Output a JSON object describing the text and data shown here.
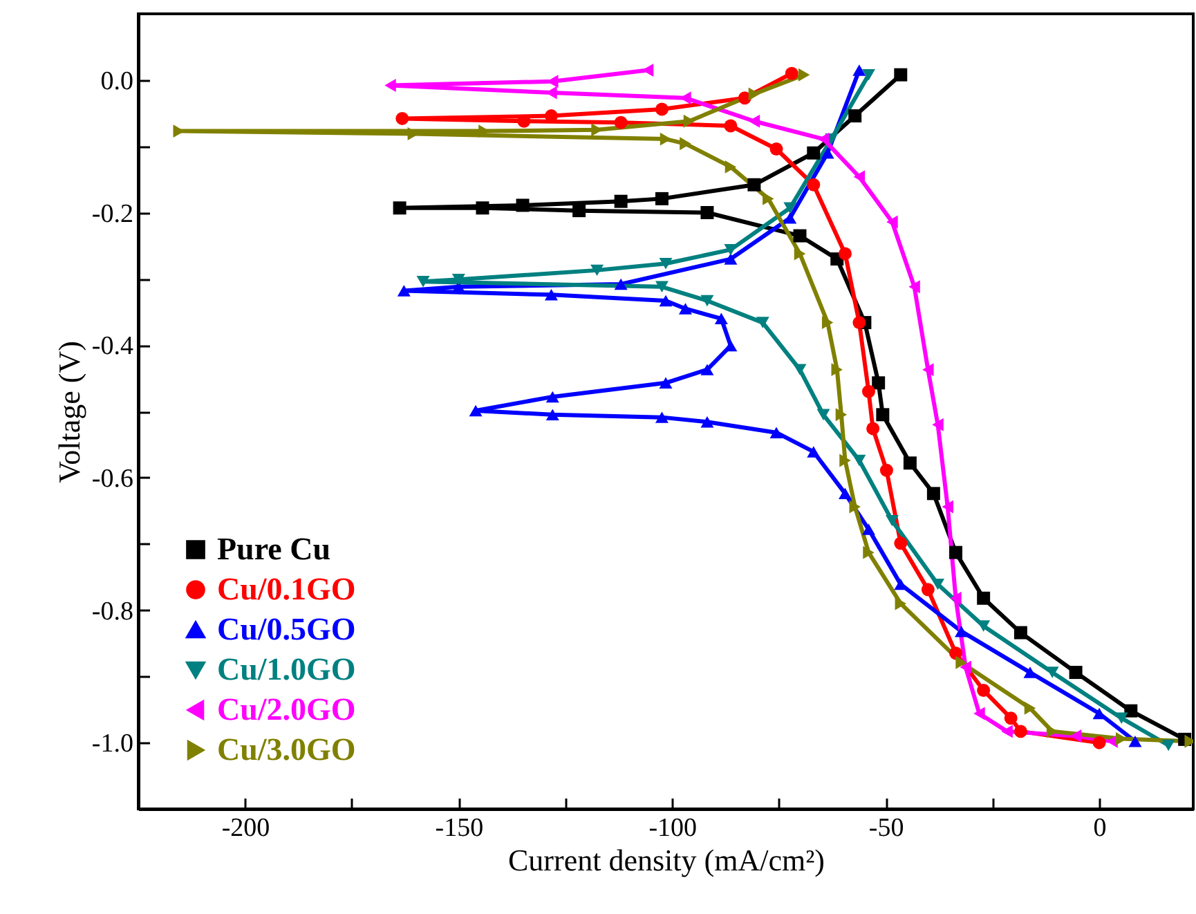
{
  "chart_data": {
    "type": "line",
    "xlabel": "Current density (mA/cm²)",
    "ylabel": "Voltage (V)",
    "xlim": [
      -225,
      22
    ],
    "ylim": [
      -1.1,
      0.1
    ],
    "xticks": [
      -200,
      {
        "value": -175,
        "label": null
      },
      -150,
      {
        "value": -125,
        "label": null
      },
      -100,
      {
        "value": -75,
        "label": null
      },
      -50,
      {
        "value": -25,
        "label": null
      },
      0
    ],
    "yticks": [
      {
        "value": 0,
        "label": "0.0"
      },
      {
        "value": -0.1,
        "label": null
      },
      -0.2,
      {
        "value": -0.3,
        "label": null
      },
      -0.4,
      {
        "value": -0.5,
        "label": null
      },
      -0.6,
      {
        "value": -0.7,
        "label": null
      },
      -0.8,
      {
        "value": -0.9,
        "label": null
      },
      {
        "value": -1,
        "label": "-1.0"
      }
    ],
    "grid": false,
    "legend": "bottom left",
    "line_style": "solid",
    "series": [
      {
        "name": "Pure Cu",
        "color": "#000000",
        "marker": "square",
        "x": [
          20,
          7.4,
          -5.5,
          -18.4,
          -27.1,
          -33.6,
          -38.8,
          -44.3,
          -50.7,
          -51.7,
          -54.9,
          -61.4,
          -70.1,
          -91.8,
          -121.8,
          -144.4,
          -163.8,
          -135,
          -112,
          -102.4,
          -80.8,
          -66.9,
          -57.2,
          -46.5
        ],
        "values": [
          -0.995,
          -0.952,
          -0.894,
          -0.834,
          -0.782,
          -0.713,
          -0.624,
          -0.578,
          -0.505,
          -0.457,
          -0.366,
          -0.27,
          -0.235,
          -0.2,
          -0.197,
          -0.193,
          -0.193,
          -0.189,
          -0.183,
          -0.179,
          -0.158,
          -0.11,
          -0.054,
          0.008
        ]
      },
      {
        "name": "Cu/0.1GO",
        "color": "#ff0000",
        "marker": "circle",
        "x": [
          0,
          -18.4,
          -20.7,
          -27.1,
          -33.6,
          -40.1,
          -46.5,
          -49.8,
          -53,
          -54,
          -56.2,
          -59.5,
          -66.9,
          -75.6,
          -86.3,
          -112,
          -134.7,
          -163.2,
          -128.3,
          -102.4,
          -83,
          -72
        ],
        "values": [
          -1,
          -0.983,
          -0.963,
          -0.921,
          -0.865,
          -0.769,
          -0.699,
          -0.589,
          -0.526,
          -0.47,
          -0.366,
          -0.262,
          -0.158,
          -0.104,
          -0.069,
          -0.064,
          -0.062,
          -0.058,
          -0.054,
          -0.044,
          -0.027,
          0.01
        ]
      },
      {
        "name": "Cu/0.5GO",
        "color": "#0000ff",
        "marker": "triangle-up",
        "x": [
          8.4,
          0,
          -16.2,
          -32.3,
          -46.5,
          -54,
          -59.5,
          -66.9,
          -75.6,
          -91.8,
          -102.4,
          -128,
          -146,
          -128,
          -101.5,
          -91.8,
          -86.3,
          -88.5,
          -96.9,
          -101.5,
          -128.3,
          -162.8,
          -150,
          -112,
          -86.3,
          -72.4,
          -63.6,
          -56.2
        ],
        "values": [
          -0.998,
          -0.956,
          -0.894,
          -0.832,
          -0.761,
          -0.678,
          -0.624,
          -0.561,
          -0.532,
          -0.516,
          -0.509,
          -0.505,
          -0.499,
          -0.478,
          -0.457,
          -0.437,
          -0.401,
          -0.36,
          -0.345,
          -0.333,
          -0.324,
          -0.318,
          -0.312,
          -0.308,
          -0.27,
          -0.208,
          -0.11,
          0.015
        ]
      },
      {
        "name": "Cu/1.0GO",
        "color": "#008080",
        "marker": "triangle-down",
        "x": [
          16.2,
          5.2,
          -11,
          -27.1,
          -37.8,
          -48.5,
          -56.2,
          -64.6,
          -70.1,
          -78.8,
          -91.8,
          -102.4,
          -158.3,
          -150,
          -117.6,
          -101.5,
          -86.3,
          -72.4,
          -62.7,
          -54
        ],
        "values": [
          -1.004,
          -0.963,
          -0.894,
          -0.824,
          -0.761,
          -0.665,
          -0.574,
          -0.505,
          -0.437,
          -0.366,
          -0.333,
          -0.312,
          -0.304,
          -0.301,
          -0.287,
          -0.277,
          -0.256,
          -0.193,
          -0.089,
          0.008
        ]
      },
      {
        "name": "Cu/2.0GO",
        "color": "#ff00ff",
        "marker": "triangle-left",
        "x": [
          3,
          -5.5,
          -21.6,
          -28.1,
          -31.3,
          -33.6,
          -35.5,
          -37.8,
          -40.1,
          -43.3,
          -48.5,
          -56.2,
          -64.6,
          -80.8,
          -96.9,
          -128.3,
          -166,
          -128,
          -105.7
        ],
        "values": [
          -0.998,
          -0.99,
          -0.983,
          -0.956,
          -0.886,
          -0.782,
          -0.644,
          -0.52,
          -0.437,
          -0.312,
          -0.214,
          -0.146,
          -0.089,
          -0.062,
          -0.027,
          -0.019,
          -0.008,
          -0.002,
          0.015
        ]
      },
      {
        "name": "Cu/3.0GO",
        "color": "#808000",
        "marker": "triangle-right",
        "x": [
          21.3,
          5.2,
          -11,
          -16.2,
          -32.3,
          -46.5,
          -54,
          -57.2,
          -59.5,
          -60.4,
          -61.4,
          -63.6,
          -70.1,
          -77.5,
          -86.3,
          -96.9,
          -101.5,
          -160.6,
          -215.5,
          -144,
          -117.6,
          -96,
          -80.8,
          -69.1
        ],
        "values": [
          -0.998,
          -0.994,
          -0.983,
          -0.948,
          -0.879,
          -0.79,
          -0.713,
          -0.644,
          -0.574,
          -0.505,
          -0.437,
          -0.366,
          -0.262,
          -0.179,
          -0.131,
          -0.096,
          -0.089,
          -0.081,
          -0.077,
          -0.077,
          -0.075,
          -0.062,
          -0.021,
          0.008
        ]
      }
    ]
  }
}
